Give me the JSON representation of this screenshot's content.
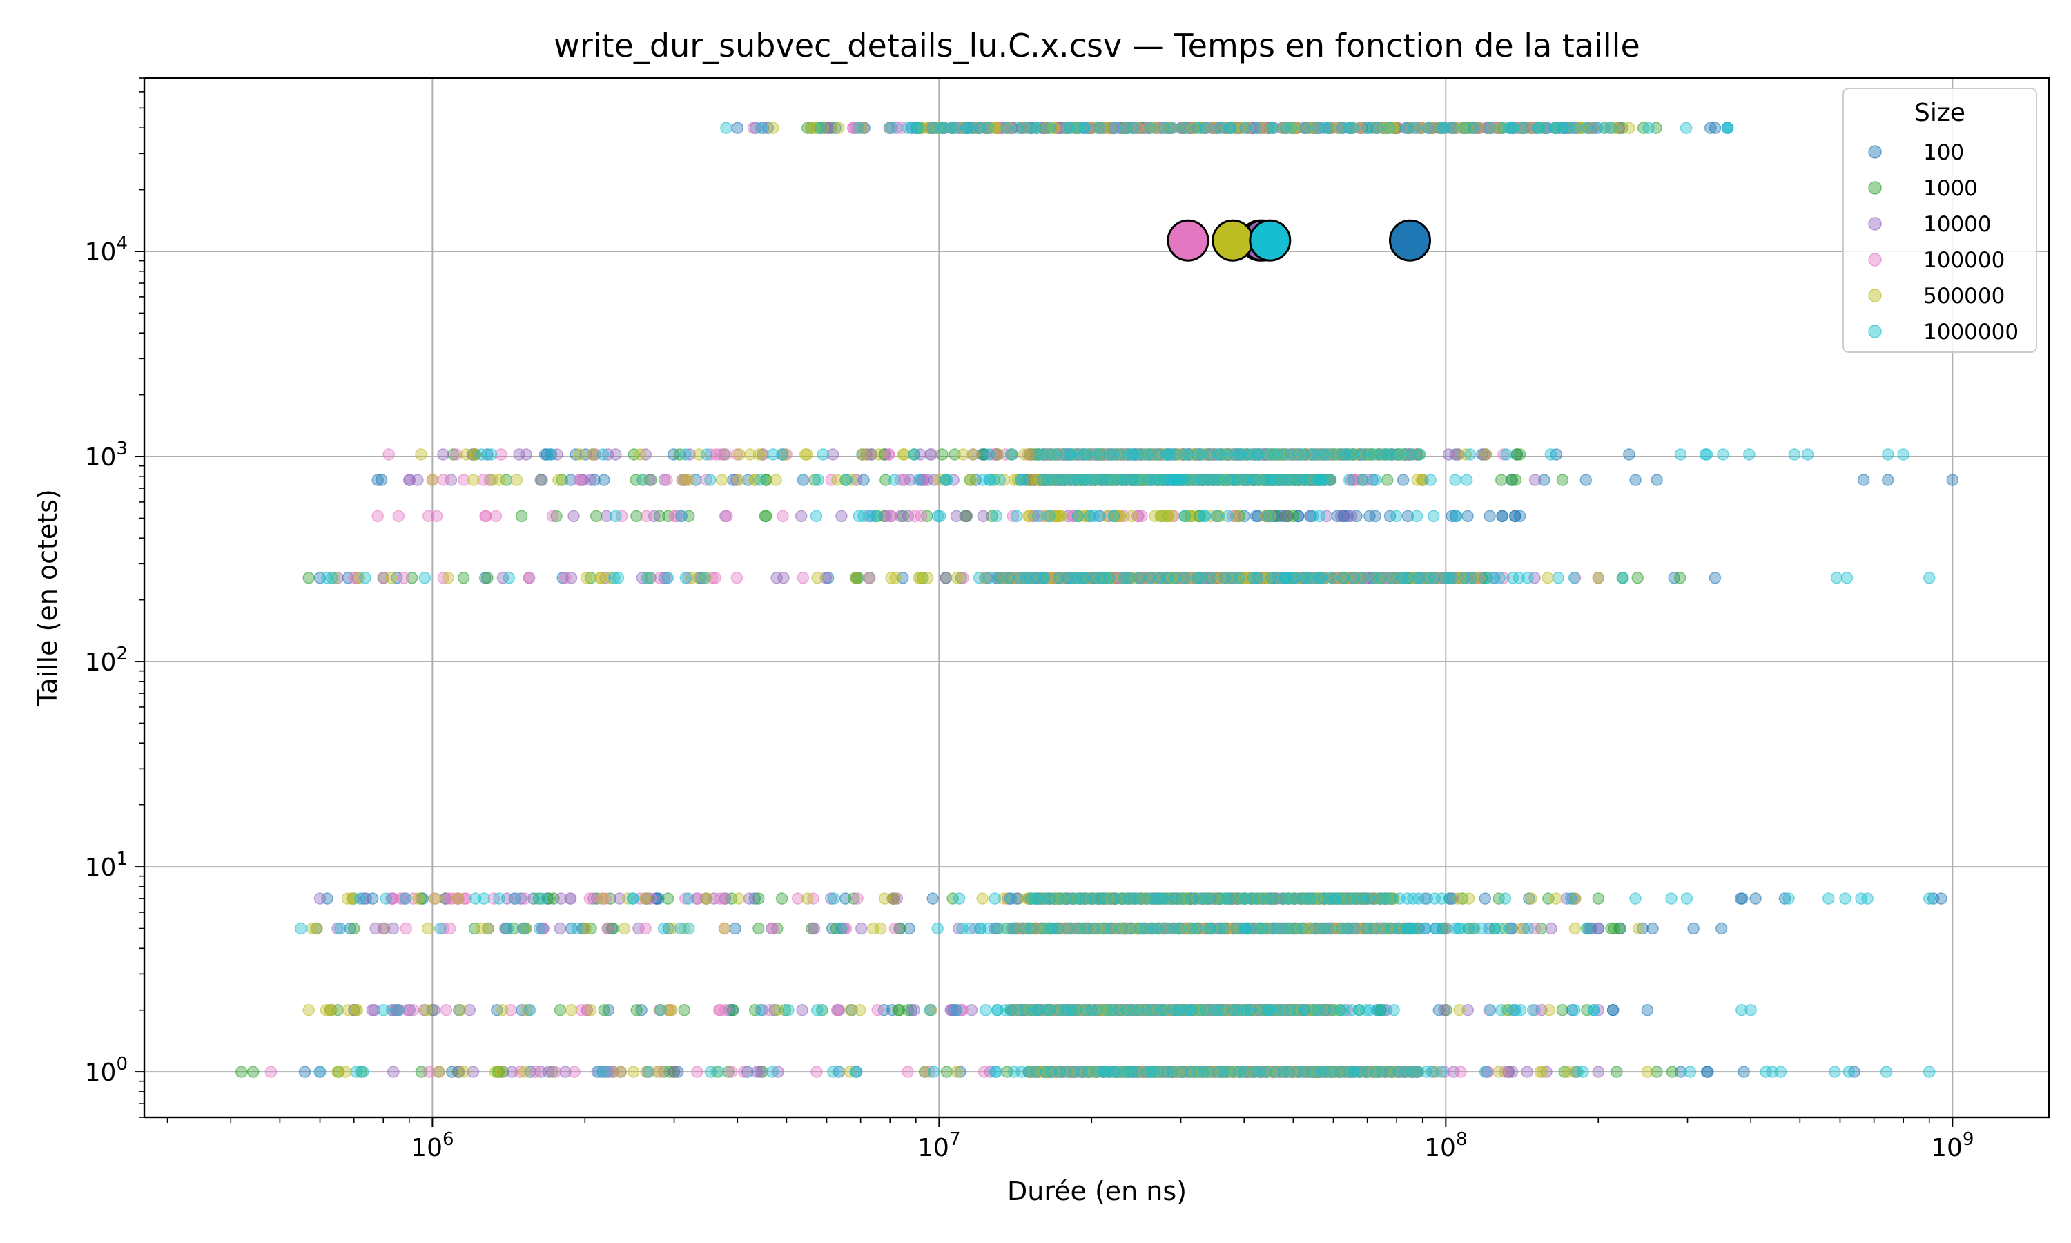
{
  "chart_data": {
    "type": "scatter",
    "title": "write_dur_subvec_details_lu.C.x.csv — Temps en fonction de la taille",
    "xlabel": "Durée (en ns)",
    "ylabel": "Taille (en octets)",
    "xscale": "log",
    "yscale": "log",
    "xlim": [
      270000,
      1550000000
    ],
    "ylim": [
      0.6,
      70000
    ],
    "xticks": [
      {
        "value": 1000000,
        "base": "10",
        "exp": "6"
      },
      {
        "value": 10000000,
        "base": "10",
        "exp": "7"
      },
      {
        "value": 100000000,
        "base": "10",
        "exp": "8"
      },
      {
        "value": 1000000000,
        "base": "10",
        "exp": "9"
      }
    ],
    "yticks": [
      {
        "value": 1,
        "base": "10",
        "exp": "0"
      },
      {
        "value": 10,
        "base": "10",
        "exp": "1"
      },
      {
        "value": 100,
        "base": "10",
        "exp": "2"
      },
      {
        "value": 1000,
        "base": "10",
        "exp": "3"
      },
      {
        "value": 10000,
        "base": "10",
        "exp": "4"
      }
    ],
    "grid": true,
    "legend": {
      "title": "Size",
      "position": "top-right"
    },
    "series": [
      {
        "name": "100",
        "color": "#1f77b4",
        "bands": [
          {
            "y": 1,
            "x": [
              560000,
              640000000
            ],
            "dense": [
              16000000,
              90000000
            ]
          },
          {
            "y": 2,
            "x": [
              630000,
              250000000
            ],
            "dense": [
              14000000,
              60000000
            ]
          },
          {
            "y": 5,
            "x": [
              590000,
              350000000
            ],
            "dense": [
              14000000,
              100000000
            ]
          },
          {
            "y": 7,
            "x": [
              620000,
              950000000
            ],
            "dense": [
              15000000,
              80000000
            ]
          },
          {
            "y": 256,
            "x": [
              600000,
              340000000
            ],
            "dense": [
              13000000,
              120000000
            ]
          },
          {
            "y": 512,
            "x": [
              40000000,
              140000000
            ],
            "dense": []
          },
          {
            "y": 768,
            "x": [
              780000,
              1000000000
            ],
            "dense": [
              15000000,
              60000000
            ]
          },
          {
            "y": 1024,
            "x": [
              1200000,
              230000000
            ],
            "dense": [
              15000000,
              90000000
            ]
          },
          {
            "y": 40000,
            "x": [
              4000000,
              360000000
            ],
            "dense": [
              9000000,
              200000000
            ]
          }
        ]
      },
      {
        "name": "1000",
        "color": "#2ca02c",
        "bands": [
          {
            "y": 1,
            "x": [
              420000,
              280000000
            ],
            "dense": [
              15000000,
              90000000
            ]
          },
          {
            "y": 2,
            "x": [
              650000,
              190000000
            ],
            "dense": [
              14000000,
              60000000
            ]
          },
          {
            "y": 5,
            "x": [
              700000,
              220000000
            ],
            "dense": [
              14000000,
              90000000
            ]
          },
          {
            "y": 7,
            "x": [
              950000,
              200000000
            ],
            "dense": [
              15000000,
              80000000
            ]
          },
          {
            "y": 256,
            "x": [
              570000,
              290000000
            ],
            "dense": [
              13000000,
              120000000
            ]
          },
          {
            "y": 512,
            "x": [
              1500000,
              50000000
            ],
            "dense": []
          },
          {
            "y": 768,
            "x": [
              1400000,
              170000000
            ],
            "dense": [
              15000000,
              60000000
            ]
          },
          {
            "y": 1024,
            "x": [
              1100000,
              140000000
            ],
            "dense": [
              15000000,
              90000000
            ]
          },
          {
            "y": 40000,
            "x": [
              5500000,
              260000000
            ],
            "dense": [
              9000000,
              200000000
            ]
          }
        ]
      },
      {
        "name": "10000",
        "color": "#9467bd",
        "bands": [
          {
            "y": 1,
            "x": [
              600000,
              200000000
            ],
            "dense": [
              15000000,
              90000000
            ]
          },
          {
            "y": 2,
            "x": [
              700000,
              200000000
            ],
            "dense": [
              14000000,
              60000000
            ]
          },
          {
            "y": 5,
            "x": [
              650000,
              200000000
            ],
            "dense": [
              14000000,
              90000000
            ]
          },
          {
            "y": 7,
            "x": [
              600000,
              180000000
            ],
            "dense": [
              15000000,
              80000000
            ]
          },
          {
            "y": 256,
            "x": [
              650000,
              200000000
            ],
            "dense": [
              13000000,
              120000000
            ]
          },
          {
            "y": 512,
            "x": [
              1900000,
              65000000
            ],
            "dense": []
          },
          {
            "y": 768,
            "x": [
              900000,
              150000000
            ],
            "dense": [
              15000000,
              60000000
            ]
          },
          {
            "y": 1024,
            "x": [
              1050000,
              120000000
            ],
            "dense": [
              15000000,
              90000000
            ]
          },
          {
            "y": 40000,
            "x": [
              4500000,
              220000000
            ],
            "dense": [
              9000000,
              200000000
            ]
          }
        ]
      },
      {
        "name": "100000",
        "color": "#e377c2",
        "bands": [
          {
            "y": 1,
            "x": [
              480000,
              180000000
            ],
            "dense": [
              15000000,
              90000000
            ]
          },
          {
            "y": 2,
            "x": [
              850000,
              150000000
            ],
            "dense": [
              14000000,
              60000000
            ]
          },
          {
            "y": 5,
            "x": [
              800000,
              150000000
            ],
            "dense": [
              14000000,
              90000000
            ]
          },
          {
            "y": 7,
            "x": [
              830000,
              6900000
            ],
            "dense": []
          },
          {
            "y": 256,
            "x": [
              700000,
              180000000
            ],
            "dense": [
              13000000,
              120000000
            ]
          },
          {
            "y": 512,
            "x": [
              780000,
              38000000
            ],
            "dense": []
          },
          {
            "y": 768,
            "x": [
              1000000,
              70000000
            ],
            "dense": []
          },
          {
            "y": 1024,
            "x": [
              820000,
              130000000
            ],
            "dense": [
              16000000,
              60000000
            ]
          },
          {
            "y": 40000,
            "x": [
              4300000,
              210000000
            ],
            "dense": [
              9000000,
              200000000
            ]
          }
        ]
      },
      {
        "name": "500000",
        "color": "#bcbd22",
        "bands": [
          {
            "y": 1,
            "x": [
              650000,
              250000000
            ],
            "dense": [
              15000000,
              90000000
            ]
          },
          {
            "y": 2,
            "x": [
              570000,
              160000000
            ],
            "dense": [
              14000000,
              60000000
            ]
          },
          {
            "y": 5,
            "x": [
              580000,
              240000000
            ],
            "dense": [
              14000000,
              90000000
            ]
          },
          {
            "y": 7,
            "x": [
              680000,
              180000000
            ],
            "dense": [
              15000000,
              80000000
            ]
          },
          {
            "y": 256,
            "x": [
              640000,
              200000000
            ],
            "dense": [
              13000000,
              120000000
            ]
          },
          {
            "y": 512,
            "x": [
              15000000,
              45000000
            ],
            "dense": []
          },
          {
            "y": 768,
            "x": [
              1000000,
              90000000
            ],
            "dense": [
              15000000,
              60000000
            ]
          },
          {
            "y": 1024,
            "x": [
              950000,
              120000000
            ],
            "dense": [
              15000000,
              90000000
            ]
          },
          {
            "y": 40000,
            "x": [
              4700000,
              230000000
            ],
            "dense": [
              9000000,
              200000000
            ]
          }
        ]
      },
      {
        "name": "1000000",
        "color": "#17becf",
        "bands": [
          {
            "y": 1,
            "x": [
              600000,
              900000000
            ],
            "dense": [
              14000000,
              100000000
            ]
          },
          {
            "y": 2,
            "x": [
              800000,
              400000000
            ],
            "dense": [
              13000000,
              80000000
            ]
          },
          {
            "y": 5,
            "x": [
              550000,
              190000000
            ],
            "dense": [
              11000000,
              120000000
            ]
          },
          {
            "y": 7,
            "x": [
              720000,
              900000000
            ],
            "dense": [
              15000000,
              100000000
            ]
          },
          {
            "y": 256,
            "x": [
              620000,
              900000000
            ],
            "dense": [
              12000000,
              150000000
            ]
          },
          {
            "y": 512,
            "x": [
              2300000,
              105000000
            ],
            "dense": []
          },
          {
            "y": 768,
            "x": [
              2600000,
              110000000
            ],
            "dense": [
              16000000,
              60000000
            ]
          },
          {
            "y": 1024,
            "x": [
              1250000,
              800000000
            ],
            "dense": [
              16000000,
              90000000
            ]
          },
          {
            "y": 40000,
            "x": [
              3800000,
              360000000
            ],
            "dense": [
              8000000,
              220000000
            ]
          }
        ]
      }
    ],
    "markers": [
      {
        "series": "100000",
        "x": 31000000,
        "y": 11300,
        "color": "#e377c2"
      },
      {
        "series": "1000",
        "x": 43000000,
        "y": 11300,
        "color": "#2ca02c"
      },
      {
        "series": "10000",
        "x": 43500000,
        "y": 11300,
        "color": "#9467bd"
      },
      {
        "series": "500000",
        "x": 38000000,
        "y": 11300,
        "color": "#bcbd22"
      },
      {
        "series": "1000000",
        "x": 45000000,
        "y": 11300,
        "color": "#17becf"
      },
      {
        "series": "100",
        "x": 85000000,
        "y": 11300,
        "color": "#1f77b4"
      }
    ]
  }
}
